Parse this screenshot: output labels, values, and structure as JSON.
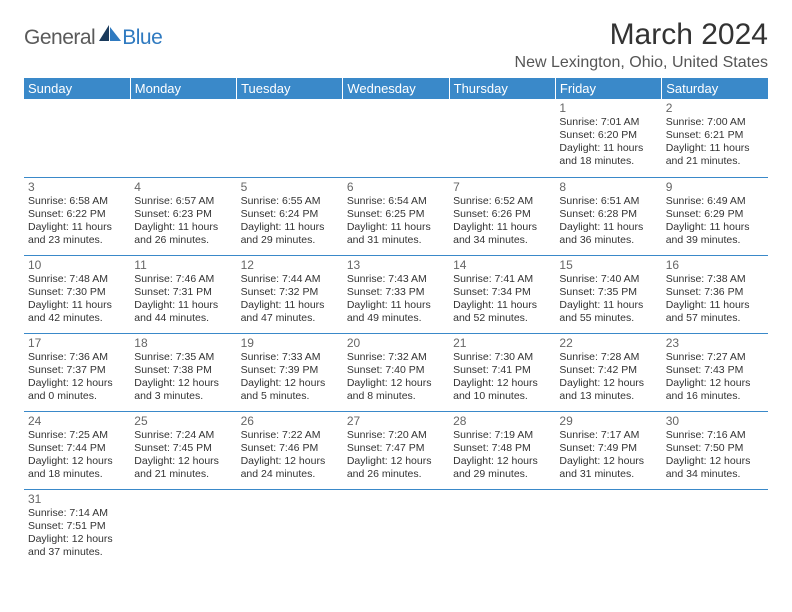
{
  "logo": {
    "general": "General",
    "blue": "Blue"
  },
  "title": "March 2024",
  "location": "New Lexington, Ohio, United States",
  "colors": {
    "header_bg": "#3a89c9",
    "header_text": "#ffffff",
    "grid_line": "#3a89c9",
    "title_text": "#333333",
    "location_text": "#555555",
    "daynum_text": "#666666",
    "cell_text": "#333333",
    "logo_general": "#5a5a5a",
    "logo_blue": "#2f7ac0",
    "background": "#ffffff"
  },
  "day_headers": [
    "Sunday",
    "Monday",
    "Tuesday",
    "Wednesday",
    "Thursday",
    "Friday",
    "Saturday"
  ],
  "weeks": [
    [
      null,
      null,
      null,
      null,
      null,
      {
        "n": "1",
        "sr": "Sunrise: 7:01 AM",
        "ss": "Sunset: 6:20 PM",
        "dl1": "Daylight: 11 hours",
        "dl2": "and 18 minutes."
      },
      {
        "n": "2",
        "sr": "Sunrise: 7:00 AM",
        "ss": "Sunset: 6:21 PM",
        "dl1": "Daylight: 11 hours",
        "dl2": "and 21 minutes."
      }
    ],
    [
      {
        "n": "3",
        "sr": "Sunrise: 6:58 AM",
        "ss": "Sunset: 6:22 PM",
        "dl1": "Daylight: 11 hours",
        "dl2": "and 23 minutes."
      },
      {
        "n": "4",
        "sr": "Sunrise: 6:57 AM",
        "ss": "Sunset: 6:23 PM",
        "dl1": "Daylight: 11 hours",
        "dl2": "and 26 minutes."
      },
      {
        "n": "5",
        "sr": "Sunrise: 6:55 AM",
        "ss": "Sunset: 6:24 PM",
        "dl1": "Daylight: 11 hours",
        "dl2": "and 29 minutes."
      },
      {
        "n": "6",
        "sr": "Sunrise: 6:54 AM",
        "ss": "Sunset: 6:25 PM",
        "dl1": "Daylight: 11 hours",
        "dl2": "and 31 minutes."
      },
      {
        "n": "7",
        "sr": "Sunrise: 6:52 AM",
        "ss": "Sunset: 6:26 PM",
        "dl1": "Daylight: 11 hours",
        "dl2": "and 34 minutes."
      },
      {
        "n": "8",
        "sr": "Sunrise: 6:51 AM",
        "ss": "Sunset: 6:28 PM",
        "dl1": "Daylight: 11 hours",
        "dl2": "and 36 minutes."
      },
      {
        "n": "9",
        "sr": "Sunrise: 6:49 AM",
        "ss": "Sunset: 6:29 PM",
        "dl1": "Daylight: 11 hours",
        "dl2": "and 39 minutes."
      }
    ],
    [
      {
        "n": "10",
        "sr": "Sunrise: 7:48 AM",
        "ss": "Sunset: 7:30 PM",
        "dl1": "Daylight: 11 hours",
        "dl2": "and 42 minutes."
      },
      {
        "n": "11",
        "sr": "Sunrise: 7:46 AM",
        "ss": "Sunset: 7:31 PM",
        "dl1": "Daylight: 11 hours",
        "dl2": "and 44 minutes."
      },
      {
        "n": "12",
        "sr": "Sunrise: 7:44 AM",
        "ss": "Sunset: 7:32 PM",
        "dl1": "Daylight: 11 hours",
        "dl2": "and 47 minutes."
      },
      {
        "n": "13",
        "sr": "Sunrise: 7:43 AM",
        "ss": "Sunset: 7:33 PM",
        "dl1": "Daylight: 11 hours",
        "dl2": "and 49 minutes."
      },
      {
        "n": "14",
        "sr": "Sunrise: 7:41 AM",
        "ss": "Sunset: 7:34 PM",
        "dl1": "Daylight: 11 hours",
        "dl2": "and 52 minutes."
      },
      {
        "n": "15",
        "sr": "Sunrise: 7:40 AM",
        "ss": "Sunset: 7:35 PM",
        "dl1": "Daylight: 11 hours",
        "dl2": "and 55 minutes."
      },
      {
        "n": "16",
        "sr": "Sunrise: 7:38 AM",
        "ss": "Sunset: 7:36 PM",
        "dl1": "Daylight: 11 hours",
        "dl2": "and 57 minutes."
      }
    ],
    [
      {
        "n": "17",
        "sr": "Sunrise: 7:36 AM",
        "ss": "Sunset: 7:37 PM",
        "dl1": "Daylight: 12 hours",
        "dl2": "and 0 minutes."
      },
      {
        "n": "18",
        "sr": "Sunrise: 7:35 AM",
        "ss": "Sunset: 7:38 PM",
        "dl1": "Daylight: 12 hours",
        "dl2": "and 3 minutes."
      },
      {
        "n": "19",
        "sr": "Sunrise: 7:33 AM",
        "ss": "Sunset: 7:39 PM",
        "dl1": "Daylight: 12 hours",
        "dl2": "and 5 minutes."
      },
      {
        "n": "20",
        "sr": "Sunrise: 7:32 AM",
        "ss": "Sunset: 7:40 PM",
        "dl1": "Daylight: 12 hours",
        "dl2": "and 8 minutes."
      },
      {
        "n": "21",
        "sr": "Sunrise: 7:30 AM",
        "ss": "Sunset: 7:41 PM",
        "dl1": "Daylight: 12 hours",
        "dl2": "and 10 minutes."
      },
      {
        "n": "22",
        "sr": "Sunrise: 7:28 AM",
        "ss": "Sunset: 7:42 PM",
        "dl1": "Daylight: 12 hours",
        "dl2": "and 13 minutes."
      },
      {
        "n": "23",
        "sr": "Sunrise: 7:27 AM",
        "ss": "Sunset: 7:43 PM",
        "dl1": "Daylight: 12 hours",
        "dl2": "and 16 minutes."
      }
    ],
    [
      {
        "n": "24",
        "sr": "Sunrise: 7:25 AM",
        "ss": "Sunset: 7:44 PM",
        "dl1": "Daylight: 12 hours",
        "dl2": "and 18 minutes."
      },
      {
        "n": "25",
        "sr": "Sunrise: 7:24 AM",
        "ss": "Sunset: 7:45 PM",
        "dl1": "Daylight: 12 hours",
        "dl2": "and 21 minutes."
      },
      {
        "n": "26",
        "sr": "Sunrise: 7:22 AM",
        "ss": "Sunset: 7:46 PM",
        "dl1": "Daylight: 12 hours",
        "dl2": "and 24 minutes."
      },
      {
        "n": "27",
        "sr": "Sunrise: 7:20 AM",
        "ss": "Sunset: 7:47 PM",
        "dl1": "Daylight: 12 hours",
        "dl2": "and 26 minutes."
      },
      {
        "n": "28",
        "sr": "Sunrise: 7:19 AM",
        "ss": "Sunset: 7:48 PM",
        "dl1": "Daylight: 12 hours",
        "dl2": "and 29 minutes."
      },
      {
        "n": "29",
        "sr": "Sunrise: 7:17 AM",
        "ss": "Sunset: 7:49 PM",
        "dl1": "Daylight: 12 hours",
        "dl2": "and 31 minutes."
      },
      {
        "n": "30",
        "sr": "Sunrise: 7:16 AM",
        "ss": "Sunset: 7:50 PM",
        "dl1": "Daylight: 12 hours",
        "dl2": "and 34 minutes."
      }
    ],
    [
      {
        "n": "31",
        "sr": "Sunrise: 7:14 AM",
        "ss": "Sunset: 7:51 PM",
        "dl1": "Daylight: 12 hours",
        "dl2": "and 37 minutes."
      },
      null,
      null,
      null,
      null,
      null,
      null
    ]
  ]
}
